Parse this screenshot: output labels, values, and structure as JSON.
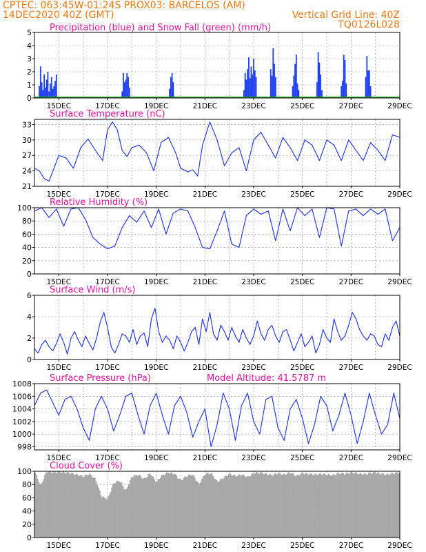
{
  "header": {
    "line1_left": "CPTEC:   063:45W-01:24S   PROX03: BARCELOS (AM)",
    "line2_left": "14DEC2020 40Z (GMT)",
    "line2_right": "Vertical Grid Line: 40Z",
    "line3_right": "TQ0126L028"
  },
  "colors": {
    "header": "#ee7a14",
    "title": "#e0149c",
    "line": "#2a3cdc",
    "precip": "#2040f0",
    "snow": "#22aa22",
    "cloud": "#a8a8a8",
    "grid": "#888888"
  },
  "x_dates": [
    "15DEC",
    "17DEC",
    "19DEC",
    "21DEC",
    "23DEC",
    "25DEC",
    "27DEC",
    "29DEC"
  ],
  "chart_data": [
    {
      "type": "bar",
      "title": "Precipitation (blue) and Snow Fall (green) (mm/h)",
      "x_range_days": [
        14.0,
        29.0
      ],
      "ylim": [
        0,
        5
      ],
      "yticks": [
        "0",
        "1",
        "2",
        "3",
        "4",
        "5"
      ],
      "grid": true,
      "series": [
        {
          "name": "Precipitation",
          "color": "#2040f0",
          "x": [
            14.2,
            14.25,
            14.3,
            14.35,
            14.4,
            14.45,
            14.5,
            14.55,
            14.6,
            14.65,
            14.7,
            14.75,
            14.8,
            14.85,
            14.9,
            17.6,
            17.65,
            17.7,
            17.75,
            17.8,
            17.85,
            17.9,
            19.55,
            19.6,
            19.65,
            19.7,
            22.6,
            22.65,
            22.7,
            22.75,
            22.8,
            22.85,
            22.9,
            22.95,
            23.0,
            23.05,
            23.1,
            23.7,
            23.75,
            23.8,
            23.85,
            23.9,
            24.6,
            24.65,
            24.7,
            24.75,
            24.8,
            24.85,
            25.6,
            25.65,
            25.7,
            25.75,
            25.8,
            26.6,
            26.65,
            26.7,
            26.75,
            26.8,
            27.6,
            27.65,
            27.7,
            27.75,
            27.8
          ],
          "values": [
            0.9,
            2.4,
            1.2,
            0.6,
            1.8,
            0.8,
            1.4,
            2.0,
            0.5,
            1.1,
            1.6,
            0.7,
            0.9,
            1.3,
            1.8,
            0.5,
            1.9,
            1.2,
            1.4,
            1.9,
            1.6,
            0.8,
            0.7,
            1.6,
            1.9,
            1.2,
            0.6,
            1.9,
            1.4,
            2.2,
            3.1,
            1.5,
            2.4,
            1.8,
            3.0,
            2.1,
            1.6,
            2.2,
            1.7,
            3.8,
            2.6,
            1.6,
            0.9,
            1.7,
            2.6,
            3.3,
            1.1,
            0.6,
            1.2,
            3.5,
            2.7,
            1.8,
            0.6,
            0.9,
            1.3,
            3.3,
            2.9,
            1.1,
            1.6,
            3.2,
            2.1,
            2.1,
            0.9
          ]
        },
        {
          "name": "Snow Fall",
          "color": "#22aa22",
          "constant": 0
        }
      ]
    },
    {
      "type": "line",
      "title": "Surface Temperature (nC)",
      "x_range_days": [
        14.0,
        29.0
      ],
      "ylim": [
        21,
        34
      ],
      "yticks": [
        "21",
        "24",
        "27",
        "30",
        "33"
      ],
      "grid": true,
      "x": [
        14.0,
        14.2,
        14.4,
        14.6,
        14.8,
        15.0,
        15.3,
        15.6,
        15.9,
        16.2,
        16.5,
        16.8,
        17.0,
        17.2,
        17.4,
        17.6,
        17.8,
        18.0,
        18.3,
        18.6,
        18.9,
        19.2,
        19.5,
        19.8,
        20.0,
        20.3,
        20.5,
        20.7,
        20.9,
        21.2,
        21.5,
        21.8,
        22.1,
        22.4,
        22.7,
        23.0,
        23.3,
        23.6,
        23.9,
        24.2,
        24.5,
        24.8,
        25.1,
        25.4,
        25.7,
        26.0,
        26.3,
        26.6,
        26.9,
        27.2,
        27.5,
        27.8,
        28.1,
        28.4,
        28.7,
        29.0
      ],
      "values": [
        24.5,
        24.0,
        22.5,
        22.0,
        24.5,
        27.0,
        26.5,
        24.5,
        28.5,
        30.2,
        28.0,
        26.0,
        32.0,
        33.5,
        32.0,
        28.0,
        26.8,
        28.5,
        29.0,
        27.5,
        24.0,
        29.5,
        30.5,
        27.5,
        24.5,
        23.8,
        24.2,
        23.0,
        29.0,
        33.5,
        30.0,
        25.0,
        27.5,
        28.5,
        24.0,
        30.0,
        31.5,
        29.0,
        26.5,
        30.5,
        28.5,
        26.0,
        30.0,
        29.0,
        26.0,
        30.0,
        29.0,
        26.0,
        30.0,
        28.0,
        26.0,
        29.5,
        28.0,
        26.0,
        31.0,
        30.5
      ]
    },
    {
      "type": "line",
      "title": "Relative Humidity (%)",
      "x_range_days": [
        14.0,
        29.0
      ],
      "ylim": [
        0,
        100
      ],
      "yticks": [
        "0",
        "20",
        "40",
        "60",
        "80",
        "100"
      ],
      "grid": true,
      "x": [
        14.0,
        14.3,
        14.6,
        14.9,
        15.2,
        15.5,
        15.8,
        16.1,
        16.4,
        16.7,
        17.0,
        17.3,
        17.6,
        17.9,
        18.2,
        18.5,
        18.8,
        19.1,
        19.4,
        19.7,
        20.0,
        20.3,
        20.6,
        20.9,
        21.2,
        21.5,
        21.8,
        22.1,
        22.4,
        22.7,
        23.0,
        23.3,
        23.6,
        23.9,
        24.2,
        24.5,
        24.8,
        25.1,
        25.4,
        25.7,
        26.0,
        26.3,
        26.6,
        26.9,
        27.2,
        27.5,
        27.8,
        28.1,
        28.4,
        28.7,
        29.0
      ],
      "values": [
        95,
        100,
        85,
        98,
        72,
        98,
        100,
        82,
        55,
        45,
        38,
        42,
        70,
        88,
        78,
        95,
        70,
        98,
        60,
        92,
        98,
        95,
        70,
        40,
        38,
        65,
        95,
        45,
        40,
        88,
        98,
        90,
        95,
        50,
        98,
        65,
        100,
        88,
        98,
        55,
        100,
        98,
        42,
        95,
        98,
        88,
        98,
        90,
        98,
        50,
        70
      ]
    },
    {
      "type": "line",
      "title": "Surface Wind (m/s)",
      "x_range_days": [
        14.0,
        29.0
      ],
      "ylim": [
        0,
        6
      ],
      "yticks": [
        "0",
        "2",
        "4",
        "6"
      ],
      "grid": true,
      "x": [
        14.0,
        14.15,
        14.3,
        14.45,
        14.6,
        14.75,
        14.9,
        15.05,
        15.2,
        15.35,
        15.5,
        15.65,
        15.8,
        15.95,
        16.1,
        16.25,
        16.4,
        16.55,
        16.7,
        16.85,
        17.0,
        17.15,
        17.3,
        17.45,
        17.6,
        17.75,
        17.9,
        18.05,
        18.2,
        18.35,
        18.5,
        18.65,
        18.8,
        18.95,
        19.1,
        19.25,
        19.4,
        19.55,
        19.7,
        19.85,
        20.0,
        20.15,
        20.3,
        20.45,
        20.6,
        20.75,
        20.9,
        21.05,
        21.2,
        21.35,
        21.5,
        21.65,
        21.8,
        21.95,
        22.1,
        22.25,
        22.4,
        22.55,
        22.7,
        22.85,
        23.0,
        23.15,
        23.3,
        23.45,
        23.6,
        23.75,
        23.9,
        24.05,
        24.2,
        24.35,
        24.5,
        24.65,
        24.8,
        24.95,
        25.1,
        25.25,
        25.4,
        25.55,
        25.7,
        25.85,
        26.0,
        26.15,
        26.3,
        26.45,
        26.6,
        26.75,
        26.9,
        27.05,
        27.2,
        27.35,
        27.5,
        27.65,
        27.8,
        27.95,
        28.1,
        28.25,
        28.4,
        28.55,
        28.7,
        28.85,
        29.0
      ],
      "values": [
        1.0,
        0.6,
        1.4,
        1.8,
        1.2,
        0.8,
        1.5,
        2.4,
        1.6,
        0.5,
        2.0,
        2.6,
        1.8,
        1.2,
        2.2,
        1.5,
        0.9,
        2.0,
        3.5,
        4.4,
        3.0,
        1.2,
        0.6,
        1.4,
        2.4,
        2.2,
        1.6,
        2.8,
        1.4,
        2.2,
        2.5,
        1.2,
        3.8,
        4.8,
        2.6,
        1.6,
        2.2,
        1.8,
        1.0,
        2.2,
        1.6,
        0.8,
        1.6,
        2.6,
        3.0,
        1.4,
        3.8,
        2.6,
        4.4,
        2.4,
        1.8,
        3.2,
        2.6,
        1.8,
        3.0,
        2.2,
        1.6,
        2.8,
        2.0,
        1.4,
        2.2,
        3.6,
        2.4,
        1.8,
        2.8,
        3.2,
        2.2,
        1.6,
        2.6,
        2.8,
        1.8,
        0.8,
        1.6,
        2.4,
        1.2,
        1.6,
        2.2,
        0.6,
        1.4,
        2.8,
        2.0,
        1.6,
        3.8,
        2.6,
        1.8,
        2.2,
        3.2,
        4.4,
        3.8,
        2.8,
        2.2,
        1.8,
        2.4,
        2.2,
        1.4,
        1.2,
        2.4,
        1.8,
        3.0,
        3.6,
        2.2
      ]
    },
    {
      "type": "line",
      "title": "Surface Pressure (hPa)",
      "annotation": "Model Altitude: 41.5787 m",
      "x_range_days": [
        14.0,
        29.0
      ],
      "ylim": [
        997.5,
        1008
      ],
      "yticks": [
        "998",
        "1000",
        "1002",
        "1004",
        "1006",
        "1008"
      ],
      "grid": true,
      "x": [
        14.0,
        14.25,
        14.5,
        14.75,
        15.0,
        15.25,
        15.5,
        15.75,
        16.0,
        16.25,
        16.5,
        16.75,
        17.0,
        17.25,
        17.5,
        17.75,
        18.0,
        18.25,
        18.5,
        18.75,
        19.0,
        19.25,
        19.5,
        19.75,
        20.0,
        20.25,
        20.5,
        20.75,
        21.0,
        21.25,
        21.5,
        21.75,
        22.0,
        22.25,
        22.5,
        22.75,
        23.0,
        23.25,
        23.5,
        23.75,
        24.0,
        24.25,
        24.5,
        24.75,
        25.0,
        25.25,
        25.5,
        25.75,
        26.0,
        26.25,
        26.5,
        26.75,
        27.0,
        27.25,
        27.5,
        27.75,
        28.0,
        28.25,
        28.5,
        28.75,
        29.0
      ],
      "values": [
        1004.5,
        1006.5,
        1007.0,
        1005.0,
        1003.0,
        1005.5,
        1006.0,
        1004.0,
        1001.0,
        999.0,
        1004.0,
        1006.0,
        1004.0,
        1000.5,
        1003.0,
        1006.0,
        1006.5,
        1003.0,
        1000.0,
        1004.5,
        1006.5,
        1003.0,
        1000.0,
        1004.5,
        1006.0,
        1003.5,
        999.5,
        1002.0,
        1004.0,
        998.0,
        1001.5,
        1006.5,
        1004.0,
        999.0,
        1004.5,
        1006.5,
        1002.0,
        1000.0,
        1005.5,
        1006.0,
        1001.0,
        999.0,
        1004.0,
        1005.5,
        1002.5,
        998.5,
        1001.5,
        1006.0,
        1004.5,
        1000.5,
        1003.0,
        1006.5,
        1003.0,
        998.5,
        1002.0,
        1006.5,
        1003.0,
        1000.0,
        1001.5,
        1006.5,
        1002.5
      ]
    },
    {
      "type": "area",
      "title": "Cloud Cover (%)",
      "x_range_days": [
        14.0,
        29.0
      ],
      "ylim": [
        0,
        100
      ],
      "yticks": [
        "0",
        "20",
        "40",
        "60",
        "80",
        "100"
      ],
      "grid": true,
      "x": [
        14.0,
        14.25,
        14.5,
        14.75,
        15.0,
        15.25,
        15.5,
        15.75,
        16.0,
        16.25,
        16.5,
        16.75,
        17.0,
        17.25,
        17.5,
        17.75,
        18.0,
        18.25,
        18.5,
        18.75,
        19.0,
        19.25,
        19.5,
        19.75,
        20.0,
        20.25,
        20.5,
        20.75,
        21.0,
        21.25,
        21.5,
        21.75,
        22.0,
        22.25,
        22.5,
        22.75,
        23.0,
        23.25,
        23.5,
        23.75,
        24.0,
        24.25,
        24.5,
        24.75,
        25.0,
        25.25,
        25.5,
        25.75,
        26.0,
        26.25,
        26.5,
        26.75,
        27.0,
        27.25,
        27.5,
        27.75,
        28.0,
        28.25,
        28.5,
        28.75,
        29.0
      ],
      "values": [
        100,
        78,
        100,
        98,
        99,
        98,
        97,
        95,
        92,
        96,
        88,
        62,
        58,
        82,
        86,
        70,
        92,
        95,
        88,
        97,
        84,
        94,
        98,
        96,
        86,
        93,
        95,
        80,
        96,
        97,
        84,
        90,
        96,
        93,
        95,
        91,
        97,
        98,
        96,
        94,
        97,
        95,
        98,
        93,
        97,
        96,
        95,
        96,
        95,
        94,
        97,
        96,
        98,
        97,
        95,
        97,
        98,
        96,
        95,
        97,
        98
      ]
    }
  ]
}
